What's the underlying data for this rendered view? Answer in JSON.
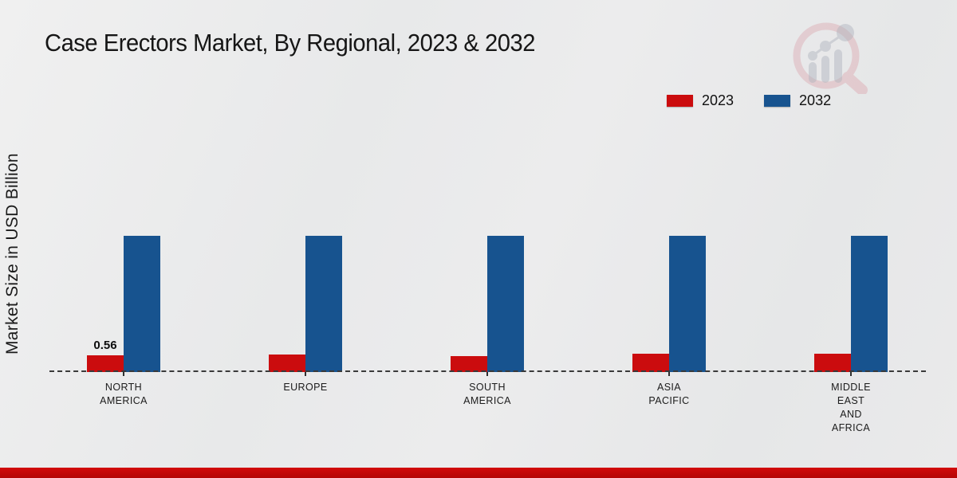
{
  "header": {
    "title": "Case Erectors Market, By Regional, 2023 & 2032"
  },
  "y_axis": {
    "label": "Market Size in USD Billion"
  },
  "legend": {
    "position": "top-right",
    "items": [
      {
        "label": "2023",
        "color": "#cb0c0e"
      },
      {
        "label": "2032",
        "color": "#17538f"
      }
    ]
  },
  "chart_data": {
    "type": "bar",
    "title": "Case Erectors Market, By Regional, 2023 & 2032",
    "xlabel": "",
    "ylabel": "Market Size in USD Billion",
    "categories": [
      "NORTH AMERICA",
      "EUROPE",
      "SOUTH AMERICA",
      "ASIA PACIFIC",
      "MIDDLE EAST AND AFRICA"
    ],
    "category_lines": [
      [
        "NORTH",
        "AMERICA"
      ],
      [
        "EUROPE"
      ],
      [
        "SOUTH",
        "AMERICA"
      ],
      [
        "ASIA",
        "PACIFIC"
      ],
      [
        "MIDDLE",
        "EAST",
        "AND",
        "AFRICA"
      ]
    ],
    "series": [
      {
        "name": "2023",
        "color": "#cb0c0e",
        "values": [
          0.56,
          0.58,
          0.54,
          0.61,
          0.61
        ],
        "data_labels": [
          "0.56",
          "",
          "",
          "",
          ""
        ]
      },
      {
        "name": "2032",
        "color": "#17538f",
        "values": [
          4.56,
          4.56,
          4.56,
          4.56,
          4.56
        ],
        "data_labels": [
          "",
          "",
          "",
          "",
          ""
        ]
      }
    ],
    "ylim": [
      0,
      5
    ],
    "grid": false,
    "legend_position": "top-right",
    "axis_style": "dashed-baseline-only",
    "annotations": [
      "0.56"
    ]
  },
  "colors": {
    "series_2023": "#cb0c0e",
    "series_2032": "#17538f",
    "footer_accent": "#c30808",
    "background": "#e9e9ea",
    "text": "#161616"
  },
  "watermark": {
    "name": "market-research-future-logo"
  },
  "footer": {}
}
